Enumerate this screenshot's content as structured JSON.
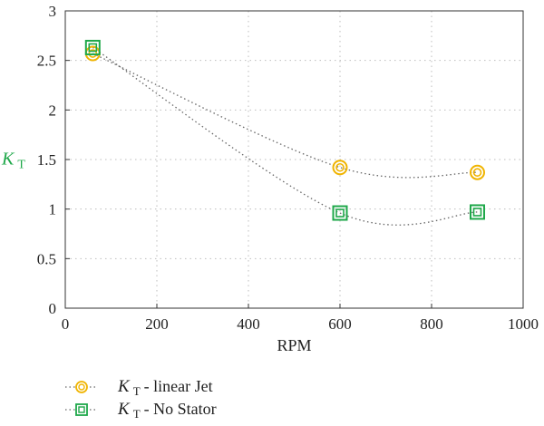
{
  "chart_data": {
    "type": "scatter",
    "xlabel": "RPM",
    "ylabel": {
      "var": "K",
      "sub": "T"
    },
    "xlim": [
      0,
      1000
    ],
    "ylim": [
      0,
      3
    ],
    "xticks": [
      "0",
      "200",
      "400",
      "600",
      "800",
      "1000"
    ],
    "yticks": [
      "0",
      "0.5",
      "1",
      "1.5",
      "2",
      "2.5",
      "3"
    ],
    "grid": true,
    "legend_position": "bottom-left, below plot",
    "series": [
      {
        "name": {
          "var": "K",
          "sub": "T",
          "text": " - linear Jet"
        },
        "marker": "double-circle",
        "color": "#f0b400",
        "x": [
          60,
          600,
          900
        ],
        "y": [
          2.57,
          1.42,
          1.37
        ]
      },
      {
        "name": {
          "var": "K",
          "sub": "T",
          "text": " - No Stator"
        },
        "marker": "double-square",
        "color": "#1fa84a",
        "x": [
          60,
          600,
          900
        ],
        "y": [
          2.63,
          0.96,
          0.97
        ]
      }
    ],
    "fit_line_color": "#666666"
  }
}
